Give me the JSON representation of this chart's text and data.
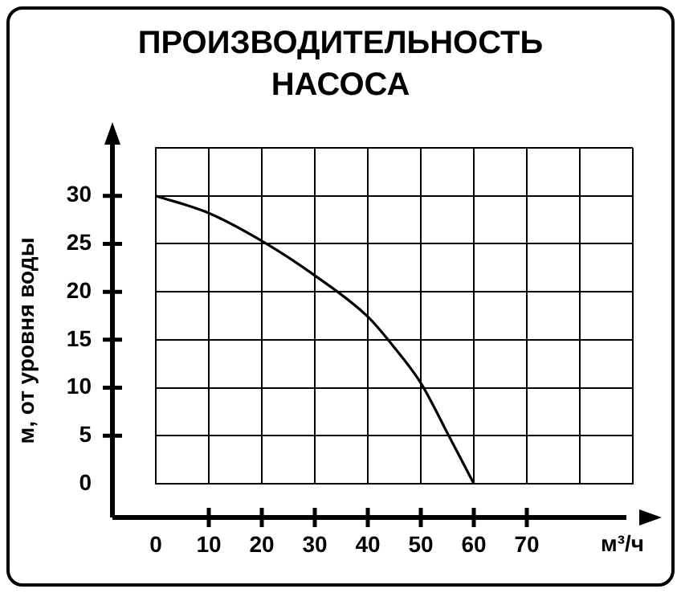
{
  "chart_data": {
    "type": "line",
    "title": "ПРОИЗВОДИТЕЛЬНОСТЬ\nНАСОСА",
    "xlabel": "м³/ч",
    "ylabel": "м, от уровня воды",
    "x": [
      0,
      10,
      20,
      30,
      40,
      45,
      50,
      55,
      60
    ],
    "series": [
      {
        "color": "#000000",
        "values": [
          30,
          28.2,
          25.3,
          21.7,
          17.4,
          14.2,
          10.5,
          5.3,
          0
        ]
      }
    ],
    "xlim": [
      0,
      90
    ],
    "xticks": [
      0,
      10,
      20,
      30,
      40,
      50,
      60,
      70,
      {
        "value": 80,
        "label": null
      },
      {
        "value": 90,
        "label": null
      }
    ],
    "ylim": [
      0,
      35
    ],
    "yticks": [
      0,
      5,
      10,
      15,
      20,
      25,
      30,
      {
        "value": 35,
        "label": null
      }
    ],
    "grid": true,
    "legend": false,
    "marker": "none",
    "line_style": "solid"
  }
}
